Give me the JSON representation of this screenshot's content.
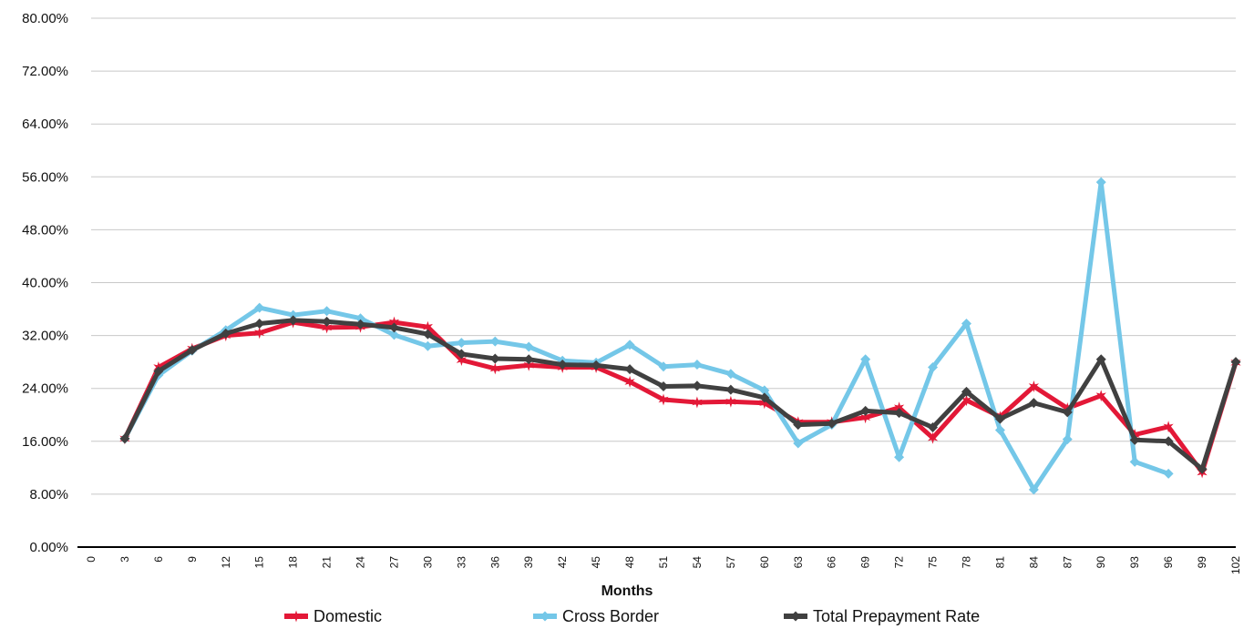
{
  "chart_data": {
    "type": "line",
    "title": "",
    "xlabel": "Months",
    "ylabel": "",
    "ylim": [
      0,
      80
    ],
    "y_ticks": [
      "0.00%",
      "8.00%",
      "16.00%",
      "24.00%",
      "32.00%",
      "40.00%",
      "48.00%",
      "56.00%",
      "64.00%",
      "72.00%",
      "80.00%"
    ],
    "x_ticks": [
      "0",
      "3",
      "6",
      "9",
      "12",
      "15",
      "18",
      "21",
      "24",
      "27",
      "30",
      "33",
      "36",
      "39",
      "42",
      "45",
      "48",
      "51",
      "54",
      "57",
      "60",
      "63",
      "66",
      "69",
      "72",
      "75",
      "78",
      "81",
      "84",
      "87",
      "90",
      "93",
      "96",
      "99",
      "102"
    ],
    "grid": true,
    "legend_position": "bottom",
    "series": [
      {
        "name": "Domestic",
        "color": "#e31837",
        "marker": "star",
        "x": [
          3,
          6,
          9,
          12,
          15,
          18,
          21,
          24,
          27,
          30,
          33,
          36,
          39,
          42,
          45,
          48,
          51,
          54,
          57,
          60,
          63,
          66,
          69,
          72,
          75,
          78,
          81,
          84,
          87,
          90,
          93,
          96,
          99,
          102
        ],
        "values": [
          16.4,
          27.2,
          30.0,
          32.0,
          32.4,
          34.0,
          33.2,
          33.3,
          34.0,
          33.3,
          28.3,
          27.0,
          27.5,
          27.2,
          27.2,
          25.0,
          22.3,
          21.9,
          22.0,
          21.8,
          18.9,
          18.9,
          19.6,
          21.1,
          16.5,
          22.2,
          19.7,
          24.3,
          21.0,
          22.9,
          17.0,
          18.2,
          11.3,
          27.9
        ]
      },
      {
        "name": "Cross Border",
        "color": "#74c7e8",
        "marker": "diamond",
        "x": [
          3,
          6,
          9,
          12,
          15,
          18,
          21,
          24,
          27,
          30,
          33,
          36,
          39,
          42,
          45,
          48,
          51,
          54,
          57,
          60,
          63,
          66,
          69,
          72,
          75,
          78,
          81,
          84,
          87,
          90,
          93,
          96
        ],
        "values": [
          16.4,
          26.0,
          29.7,
          32.8,
          36.2,
          35.1,
          35.7,
          34.6,
          32.1,
          30.4,
          30.9,
          31.1,
          30.3,
          28.2,
          27.9,
          30.6,
          27.3,
          27.6,
          26.2,
          23.7,
          15.7,
          18.5,
          28.4,
          13.6,
          27.2,
          33.8,
          17.7,
          8.7,
          16.3,
          55.2,
          12.9,
          11.1
        ]
      },
      {
        "name": "Total Prepayment Rate",
        "color": "#404040",
        "marker": "diamond",
        "x": [
          3,
          6,
          9,
          12,
          15,
          18,
          21,
          24,
          27,
          30,
          33,
          36,
          39,
          42,
          45,
          48,
          51,
          54,
          57,
          60,
          63,
          66,
          69,
          72,
          75,
          78,
          81,
          84,
          87,
          90,
          93,
          96,
          99,
          102
        ],
        "values": [
          16.4,
          26.6,
          29.8,
          32.3,
          33.8,
          34.3,
          34.1,
          33.7,
          33.2,
          32.2,
          29.2,
          28.5,
          28.4,
          27.6,
          27.5,
          26.9,
          24.3,
          24.4,
          23.8,
          22.6,
          18.5,
          18.7,
          20.6,
          20.3,
          18.1,
          23.5,
          19.4,
          21.8,
          20.4,
          28.4,
          16.2,
          16.0,
          11.8,
          28.0
        ]
      }
    ]
  }
}
